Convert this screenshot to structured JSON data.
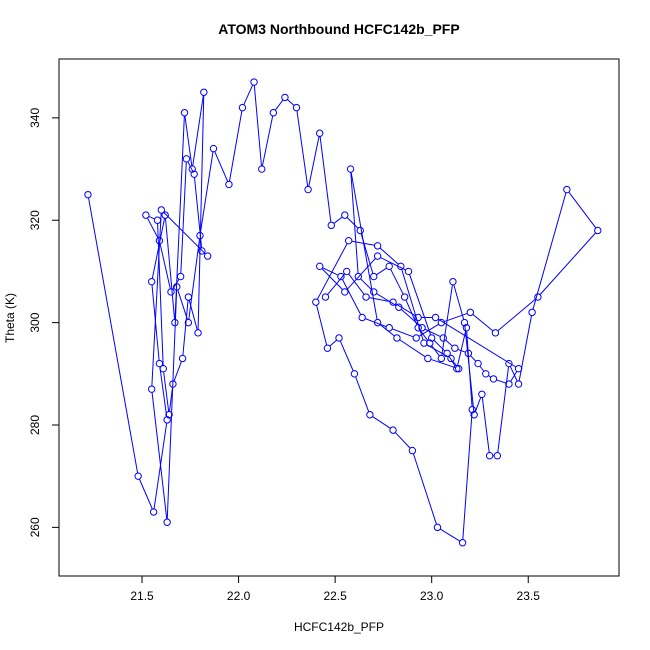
{
  "chart_data": {
    "type": "scatter",
    "title": "ATOM3 Northbound HCFC142b_PFP",
    "xlabel": "HCFC142b_PFP",
    "ylabel": "Theta (K)",
    "xlim": [
      21.07,
      23.97
    ],
    "ylim": [
      250.5,
      351.5
    ],
    "xticks": [
      21.5,
      22.0,
      22.5,
      23.0,
      23.5
    ],
    "yticks": [
      260,
      280,
      300,
      320,
      340
    ],
    "color": "#0000ff",
    "markers": "open-circle",
    "connected": true,
    "grid": false,
    "x": [
      21.22,
      21.48,
      21.56,
      21.63,
      21.59,
      21.55,
      21.62,
      21.67,
      21.72,
      21.76,
      21.82,
      21.79,
      21.74,
      21.71,
      21.66,
      21.64,
      21.61,
      21.58,
      21.52,
      21.59,
      21.65,
      21.7,
      21.73,
      21.77,
      21.81,
      21.84,
      21.6,
      21.55,
      21.63,
      21.68,
      21.74,
      21.8,
      21.87,
      21.95,
      22.02,
      22.08,
      22.12,
      22.18,
      22.24,
      22.3,
      22.36,
      22.42,
      22.48,
      22.55,
      22.63,
      22.7,
      22.78,
      22.86,
      22.93,
      22.99,
      23.05,
      23.11,
      23.17,
      23.22,
      23.26,
      23.3,
      23.34,
      23.4,
      23.45,
      23.52,
      23.7,
      23.86,
      23.55,
      23.33,
      23.2,
      23.05,
      22.92,
      22.78,
      22.64,
      22.53,
      22.42,
      22.55,
      22.72,
      22.88,
      23.0,
      23.08,
      23.13,
      23.18,
      23.21,
      23.16,
      23.03,
      22.9,
      22.8,
      22.68,
      22.6,
      22.52,
      22.46,
      22.4,
      22.57,
      22.72,
      22.84,
      22.96,
      23.1,
      23.14,
      22.98,
      22.82,
      22.72,
      22.58,
      22.62,
      22.7,
      22.83,
      22.95,
      23.06,
      23.12,
      23.19,
      23.24,
      23.28,
      23.32,
      23.4,
      23.45,
      23.02,
      22.93,
      22.8,
      22.66,
      22.56,
      22.45
    ],
    "y": [
      325,
      270,
      263,
      281,
      292,
      308,
      321,
      300,
      341,
      330,
      345,
      298,
      305,
      293,
      288,
      282,
      291,
      320,
      321,
      316,
      306,
      309,
      332,
      329,
      314,
      313,
      322,
      287,
      261,
      307,
      300,
      317,
      334,
      327,
      342,
      347,
      330,
      341,
      344,
      342,
      326,
      337,
      319,
      321,
      318,
      309,
      311,
      305,
      299,
      296,
      293,
      308,
      300,
      282,
      286,
      274,
      274,
      292,
      288,
      302,
      326,
      318,
      305,
      298,
      302,
      300,
      297,
      299,
      301,
      309,
      311,
      306,
      313,
      310,
      297,
      294,
      291,
      299,
      283,
      257,
      260,
      275,
      279,
      282,
      290,
      297,
      295,
      304,
      316,
      315,
      311,
      296,
      293,
      291,
      293,
      297,
      300,
      330,
      309,
      306,
      303,
      299,
      297,
      295,
      294,
      292,
      290,
      289,
      288,
      291,
      301,
      301,
      304,
      305,
      310,
      305
    ]
  }
}
